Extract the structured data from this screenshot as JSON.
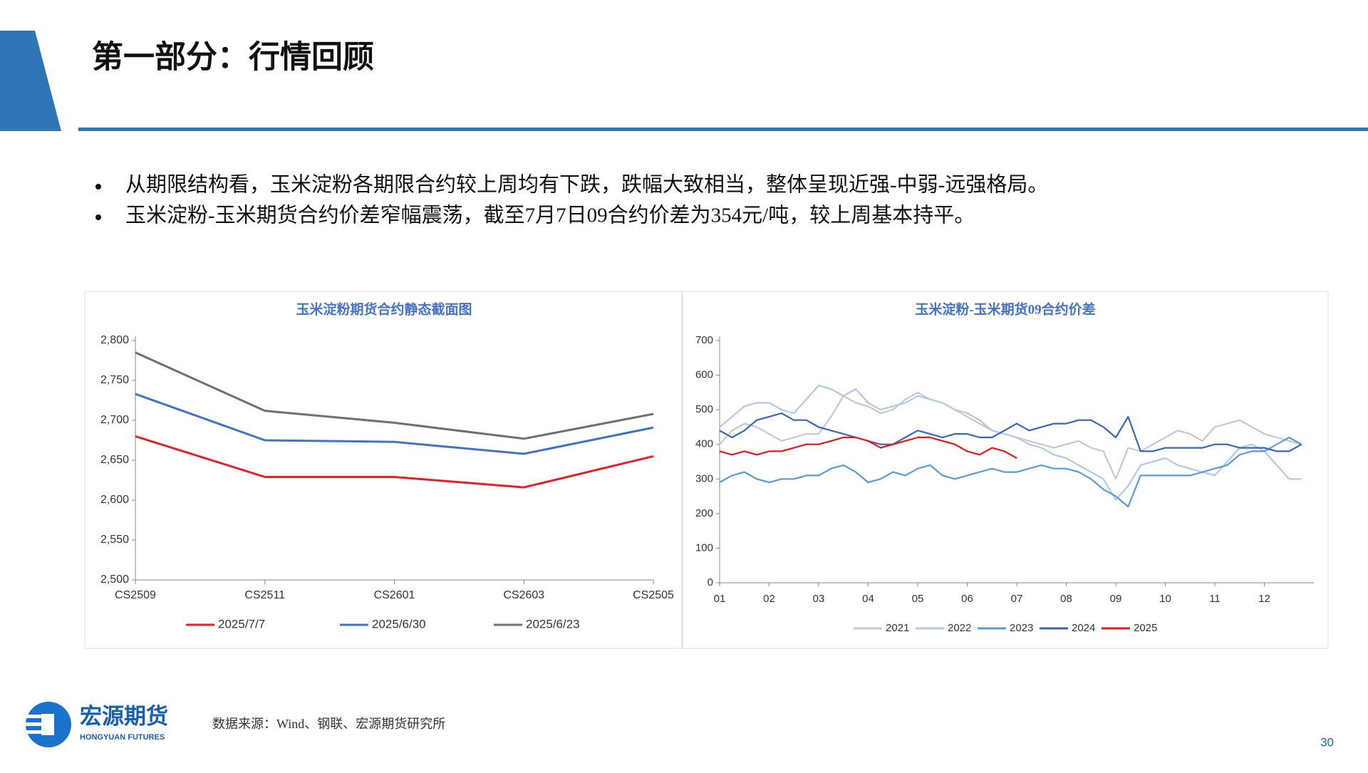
{
  "title": "第一部分：行情回顾",
  "bullets": [
    "从期限结构看，玉米淀粉各期限合约较上周均有下跌，跌幅大致相当，整体呈现近强-中弱-远强格局。",
    "玉米淀粉-玉米期货合约价差窄幅震荡，截至7月7日09合约价差为354元/吨，较上周基本持平。"
  ],
  "chart_data": [
    {
      "type": "line",
      "title": "玉米淀粉期货合约静态截面图",
      "categories": [
        "CS2509",
        "CS2511",
        "CS2601",
        "CS2603",
        "CS2505"
      ],
      "series": [
        {
          "name": "2025/7/7",
          "color": "#e0202a",
          "values": [
            2680,
            2629,
            2629,
            2616,
            2655
          ]
        },
        {
          "name": "2025/6/30",
          "color": "#4472c4",
          "values": [
            2733,
            2675,
            2673,
            2658,
            2691
          ]
        },
        {
          "name": "2025/6/23",
          "color": "#707070",
          "values": [
            2785,
            2712,
            2697,
            2677,
            2708
          ]
        }
      ],
      "ylim": [
        2500,
        2800
      ],
      "yticks": [
        {
          "value": 2500,
          "label": "2,500"
        },
        {
          "value": 2550,
          "label": "2,550"
        },
        {
          "value": 2600,
          "label": "2,600"
        },
        {
          "value": 2650,
          "label": "2,650"
        },
        {
          "value": 2700,
          "label": "2,700"
        },
        {
          "value": 2750,
          "label": "2,750"
        },
        {
          "value": 2800,
          "label": "2,800"
        }
      ],
      "grid": false
    },
    {
      "type": "line",
      "title": "玉米淀粉-玉米期货09合约价差",
      "x": [
        1,
        1.25,
        1.5,
        1.75,
        2,
        2.25,
        2.5,
        2.75,
        3,
        3.25,
        3.5,
        3.75,
        4,
        4.25,
        4.5,
        4.75,
        5,
        5.25,
        5.5,
        5.75,
        6,
        6.25,
        6.5,
        6.75,
        7,
        7.25,
        7.5,
        7.75,
        8,
        8.25,
        8.5,
        8.75,
        9,
        9.25,
        9.5,
        9.75,
        10,
        10.25,
        10.5,
        10.75,
        11,
        11.25,
        11.5,
        11.75,
        12,
        12.25,
        12.5,
        12.75
      ],
      "series": [
        {
          "name": "2021",
          "color": "#c8c8c8",
          "values": [
            400,
            440,
            460,
            450,
            430,
            410,
            420,
            430,
            430,
            480,
            540,
            520,
            510,
            490,
            500,
            530,
            550,
            530,
            520,
            500,
            480,
            460,
            440,
            430,
            420,
            410,
            400,
            390,
            400,
            410,
            390,
            380,
            300,
            390,
            380,
            400,
            420,
            440,
            430,
            410,
            450,
            460,
            470,
            450,
            430,
            420,
            410,
            400
          ]
        },
        {
          "name": "2022",
          "color": "#b4c7e7",
          "values": [
            450,
            480,
            510,
            520,
            520,
            500,
            490,
            530,
            570,
            560,
            540,
            560,
            520,
            500,
            510,
            520,
            540,
            530,
            520,
            500,
            490,
            470,
            440,
            430,
            420,
            400,
            390,
            370,
            360,
            340,
            320,
            300,
            240,
            280,
            340,
            350,
            360,
            340,
            330,
            320,
            310,
            350,
            390,
            400,
            380,
            340,
            300,
            300
          ]
        },
        {
          "name": "2023",
          "color": "#5b9bd5",
          "values": [
            290,
            310,
            320,
            300,
            290,
            300,
            300,
            310,
            310,
            330,
            340,
            320,
            290,
            300,
            320,
            310,
            330,
            340,
            310,
            300,
            310,
            320,
            330,
            320,
            320,
            330,
            340,
            330,
            330,
            320,
            300,
            270,
            250,
            220,
            310,
            310,
            310,
            310,
            310,
            320,
            330,
            340,
            370,
            380,
            380,
            400,
            420,
            400
          ]
        },
        {
          "name": "2024",
          "color": "#3a66b8",
          "values": [
            440,
            420,
            440,
            470,
            480,
            490,
            470,
            470,
            450,
            440,
            430,
            420,
            410,
            400,
            400,
            420,
            440,
            430,
            420,
            430,
            430,
            420,
            420,
            440,
            460,
            440,
            450,
            460,
            460,
            470,
            470,
            450,
            420,
            480,
            380,
            380,
            390,
            390,
            390,
            390,
            400,
            400,
            390,
            390,
            390,
            380,
            380,
            400
          ]
        },
        {
          "name": "2025",
          "color": "#e8141c",
          "values": [
            380,
            370,
            380,
            370,
            380,
            380,
            390,
            400,
            400,
            410,
            420,
            420,
            410,
            390,
            400,
            410,
            420,
            420,
            410,
            400,
            380,
            370,
            390,
            380,
            360,
            null,
            null,
            null,
            null,
            null,
            null,
            null,
            null,
            null,
            null,
            null,
            null,
            null,
            null,
            null,
            null,
            null,
            null,
            null,
            null,
            null,
            null,
            null
          ]
        }
      ],
      "xlim": [
        1,
        13
      ],
      "xticks": [
        {
          "value": 1,
          "label": "01"
        },
        {
          "value": 2,
          "label": "02"
        },
        {
          "value": 3,
          "label": "03"
        },
        {
          "value": 4,
          "label": "04"
        },
        {
          "value": 5,
          "label": "05"
        },
        {
          "value": 6,
          "label": "06"
        },
        {
          "value": 7,
          "label": "07"
        },
        {
          "value": 8,
          "label": "08"
        },
        {
          "value": 9,
          "label": "09"
        },
        {
          "value": 10,
          "label": "10"
        },
        {
          "value": 11,
          "label": "11"
        },
        {
          "value": 12,
          "label": "12"
        }
      ],
      "ylim": [
        0,
        700
      ],
      "yticks": [
        0,
        100,
        200,
        300,
        400,
        500,
        600,
        700
      ],
      "grid": false
    }
  ],
  "source": "数据来源：Wind、钢联、宏源期货研究所",
  "logo": {
    "name": "宏源期货",
    "english": "HONGYUAN FUTURES"
  },
  "page_number": "30"
}
